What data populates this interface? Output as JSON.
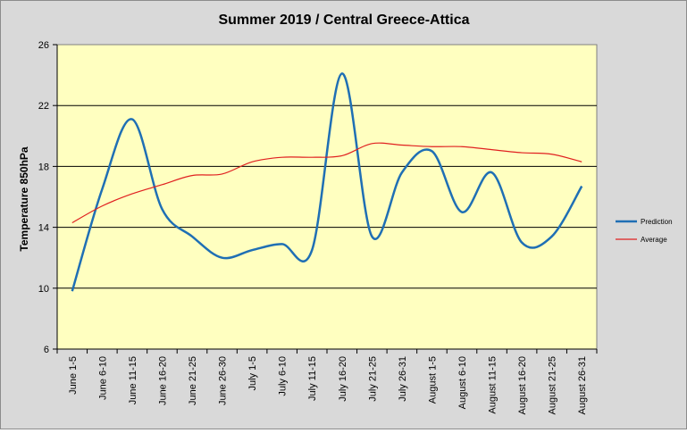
{
  "chart_data": {
    "type": "line",
    "title": "Summer 2019 / Central Greece-Attica",
    "xlabel": "",
    "ylabel": "Temperature 850hPa",
    "ylim": [
      6,
      26
    ],
    "yticks": [
      6,
      10,
      14,
      18,
      22,
      26
    ],
    "grid": true,
    "legend_position": "right",
    "categories": [
      "June 1-5",
      "June 6-10",
      "June 11-15",
      "June 16-20",
      "June 21-25",
      "June 26-30",
      "July 1-5",
      "July 6-10",
      "July 11-15",
      "July 16-20",
      "July 21-25",
      "July 26-31",
      "August 1-5",
      "August 6-10",
      "August 11-15",
      "August 16-20",
      "August 21-25",
      "August 26-31"
    ],
    "series": [
      {
        "name": "Prediction",
        "color": "#1f6fb4",
        "values": [
          9.8,
          16.5,
          21.1,
          15.2,
          13.4,
          12.0,
          12.5,
          12.9,
          12.5,
          24.1,
          13.4,
          17.6,
          19.0,
          15.0,
          17.6,
          13.0,
          13.4,
          16.7
        ]
      },
      {
        "name": "Average",
        "color": "#e02020",
        "values": [
          14.3,
          15.4,
          16.2,
          16.8,
          17.4,
          17.5,
          18.3,
          18.6,
          18.6,
          18.7,
          19.5,
          19.4,
          19.3,
          19.3,
          19.1,
          18.9,
          18.8,
          18.3
        ]
      }
    ],
    "colors": {
      "plot_background": "#ffffc0",
      "chart_background": "#d9d9d9",
      "gridline": "#000000"
    }
  }
}
